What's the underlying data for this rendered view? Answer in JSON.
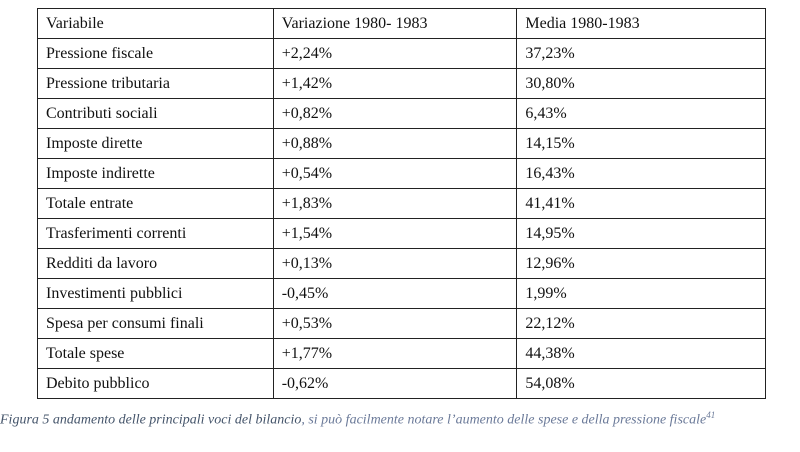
{
  "table": {
    "header": [
      "Variabile",
      "Variazione 1980- 1983",
      "Media 1980-1983"
    ],
    "rows": [
      [
        "Pressione fiscale",
        "+2,24%",
        "37,23%"
      ],
      [
        "Pressione tributaria",
        "+1,42%",
        "30,80%"
      ],
      [
        "Contributi sociali",
        "+0,82%",
        "6,43%"
      ],
      [
        "Imposte dirette",
        "+0,88%",
        "14,15%"
      ],
      [
        "Imposte indirette",
        "+0,54%",
        "16,43%"
      ],
      [
        "Totale entrate",
        "+1,83%",
        "41,41%"
      ],
      [
        "Trasferimenti correnti",
        "+1,54%",
        "14,95%"
      ],
      [
        "Redditi da lavoro",
        "+0,13%",
        "12,96%"
      ],
      [
        "Investimenti pubblici",
        "-0,45%",
        "1,99%"
      ],
      [
        "Spesa per consumi finali",
        "+0,53%",
        "22,12%"
      ],
      [
        "Totale spese",
        "+1,77%",
        "44,38%"
      ],
      [
        "Debito pubblico",
        "-0,62%",
        "54,08%"
      ]
    ]
  },
  "caption": {
    "text": "Figura 5 andamento delle principali voci del bilancio",
    "text_continued": ", si può facilmente notare l’aumento delle spese e della pressione fiscale",
    "footnote": "41"
  }
}
